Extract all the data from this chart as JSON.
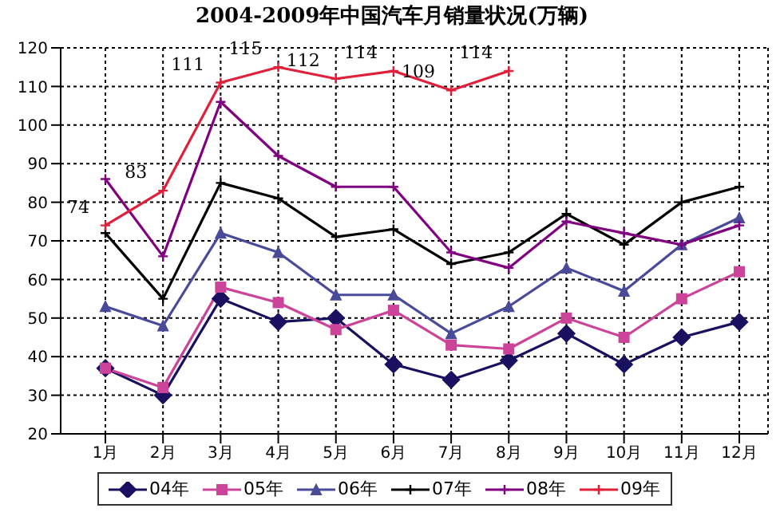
{
  "chart_data": {
    "type": "line",
    "title": "2004-2009年中国汽车月销量状况(万辆)",
    "categories": [
      "1月",
      "2月",
      "3月",
      "4月",
      "5月",
      "6月",
      "7月",
      "8月",
      "9月",
      "10月",
      "11月",
      "12月"
    ],
    "series": [
      {
        "name": "04年",
        "color": "#1a1060",
        "marker": "diamond",
        "values": [
          37,
          30,
          55,
          49,
          50,
          38,
          34,
          39,
          46,
          38,
          45,
          49
        ]
      },
      {
        "name": "05年",
        "color": "#cc4499",
        "marker": "square",
        "values": [
          37,
          32,
          58,
          54,
          47,
          52,
          43,
          42,
          50,
          45,
          55,
          62
        ]
      },
      {
        "name": "06年",
        "color": "#4a4a9a",
        "marker": "triangle",
        "values": [
          53,
          48,
          72,
          67,
          56,
          56,
          46,
          53,
          63,
          57,
          69,
          76
        ]
      },
      {
        "name": "07年",
        "color": "#000000",
        "marker": "cross",
        "values": [
          72,
          55,
          85,
          81,
          71,
          73,
          64,
          67,
          77,
          69,
          80,
          84
        ]
      },
      {
        "name": "08年",
        "color": "#800080",
        "marker": "cross",
        "values": [
          86,
          66,
          106,
          92,
          84,
          84,
          67,
          63,
          75,
          72,
          69,
          74
        ]
      },
      {
        "name": "09年",
        "color": "#e0203a",
        "marker": "cross",
        "values": [
          74,
          83,
          111,
          115,
          112,
          114,
          109,
          114,
          null,
          null,
          null,
          null
        ],
        "value_labels": [
          "74",
          "83",
          "111",
          "115",
          "112",
          "114",
          "109",
          "114",
          null,
          null,
          null,
          null
        ]
      }
    ],
    "ylim": [
      20,
      120
    ],
    "yticks": [
      20,
      30,
      40,
      50,
      60,
      70,
      80,
      90,
      100,
      110,
      120
    ],
    "grid": true,
    "legend": "bottom"
  }
}
